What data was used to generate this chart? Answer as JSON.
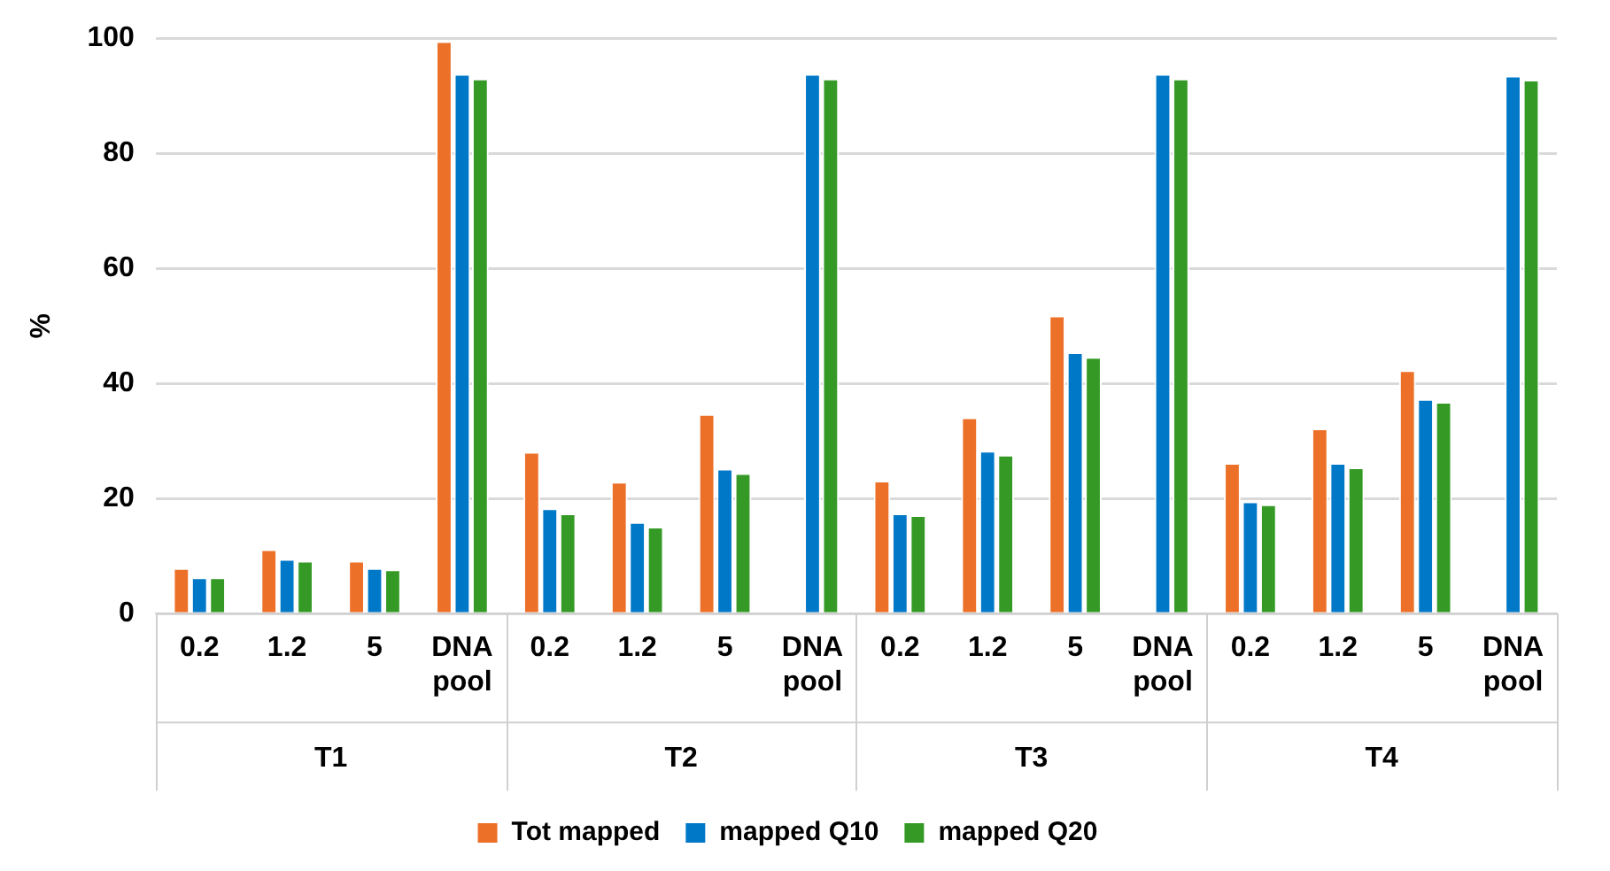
{
  "chart_data": {
    "type": "bar",
    "ylabel": "%",
    "categories": [
      "0.2",
      "1.2",
      "5",
      "DNA pool",
      "0.2",
      "1.2",
      "5",
      "DNA pool",
      "0.2",
      "1.2",
      "5",
      "DNA pool",
      "0.2",
      "1.2",
      "5",
      "DNA pool"
    ],
    "annotations": [
      "T1",
      "T2",
      "T3",
      "T4"
    ],
    "series": [
      {
        "name": "Tot mapped",
        "color": "#ed7028",
        "values": [
          7.9,
          11.2,
          9.2,
          99.5,
          28.1,
          22.9,
          34.7,
          null,
          23.1,
          34.1,
          51.8,
          null,
          26.2,
          32.2,
          42.3,
          null
        ]
      },
      {
        "name": "mapped Q10",
        "color": "#0078c8",
        "values": [
          6.3,
          9.5,
          7.9,
          93.8,
          18.3,
          15.9,
          25.2,
          93.8,
          17.4,
          28.3,
          45.4,
          93.8,
          19.5,
          26.2,
          37.3,
          93.5
        ]
      },
      {
        "name": "mapped Q20",
        "color": "#359a25",
        "values": [
          6.3,
          9.2,
          7.7,
          93.0,
          17.4,
          15.1,
          24.4,
          93.0,
          17.1,
          27.6,
          44.6,
          93.0,
          19.0,
          25.4,
          36.8,
          92.8
        ]
      }
    ],
    "ylim": [
      0,
      100
    ],
    "yticks": [
      0,
      20,
      40,
      60,
      80,
      100
    ],
    "grid": "y",
    "legend": "bottom"
  }
}
